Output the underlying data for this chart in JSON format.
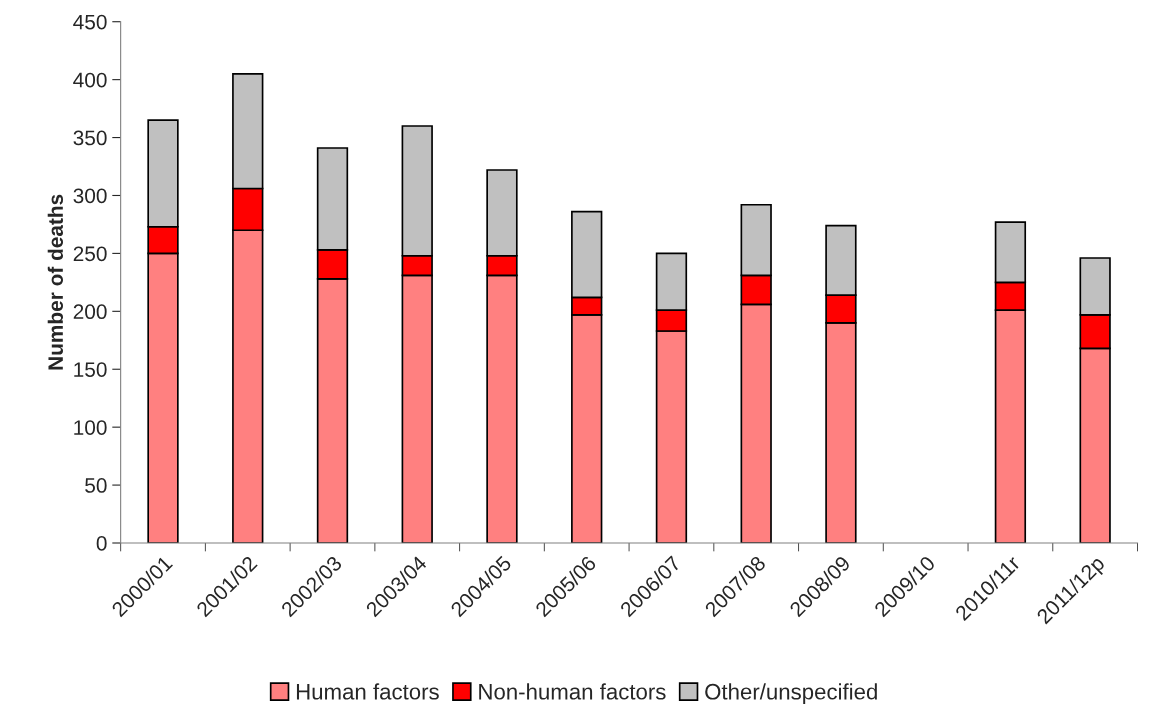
{
  "chart_data": {
    "type": "bar",
    "stacked": true,
    "ylabel": "Number of deaths",
    "categories": [
      "2000/01",
      "2001/02",
      "2002/03",
      "2003/04",
      "2004/05",
      "2005/06",
      "2006/07",
      "2007/08",
      "2008/09",
      "2009/10",
      "2010/11r",
      "2011/12p"
    ],
    "series": [
      {
        "name": "Human factors",
        "color": "#ff8080",
        "values": [
          250,
          270,
          228,
          231,
          231,
          197,
          183,
          206,
          190,
          null,
          201,
          168
        ]
      },
      {
        "name": "Non-human factors",
        "color": "#ff0000",
        "values": [
          23,
          36,
          25,
          17,
          17,
          15,
          18,
          25,
          24,
          null,
          24,
          29
        ]
      },
      {
        "name": "Other/unspecified",
        "color": "#c0c0c0",
        "values": [
          92,
          99,
          88,
          112,
          74,
          74,
          49,
          61,
          60,
          null,
          52,
          49
        ]
      }
    ],
    "ylim": [
      0,
      450
    ],
    "yticks": [
      0,
      50,
      100,
      150,
      200,
      250,
      300,
      350,
      400,
      450
    ],
    "grid": false,
    "legend": "bottom"
  }
}
